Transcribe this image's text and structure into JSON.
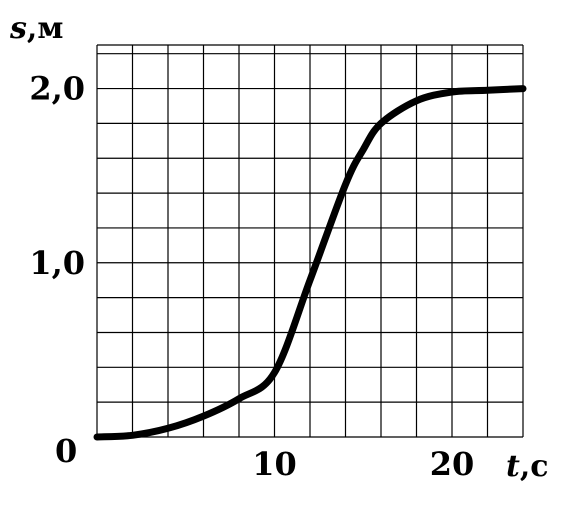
{
  "chart_data": {
    "type": "line",
    "xlabel": {
      "var": "t",
      "unit": ",с"
    },
    "ylabel": {
      "var": "s",
      "unit": ",м"
    },
    "xlim": [
      0,
      24
    ],
    "ylim": [
      0,
      2.25
    ],
    "grid": true,
    "x_minor_step": 2,
    "y_minor_step": 0.2,
    "x_ticks": [
      {
        "value": 10,
        "label": "10"
      },
      {
        "value": 20,
        "label": "20"
      }
    ],
    "y_ticks": [
      {
        "value": 1.0,
        "label": "1,0"
      },
      {
        "value": 2.0,
        "label": "2,0"
      }
    ],
    "origin_label": "0",
    "series": [
      {
        "x": [
          0,
          2,
          4,
          6,
          8,
          10,
          12,
          14,
          15,
          16,
          18,
          20,
          22,
          24
        ],
        "y": [
          0,
          0.01,
          0.05,
          0.12,
          0.22,
          0.37,
          0.9,
          1.45,
          1.65,
          1.8,
          1.93,
          1.98,
          1.99,
          2.0
        ]
      }
    ]
  }
}
